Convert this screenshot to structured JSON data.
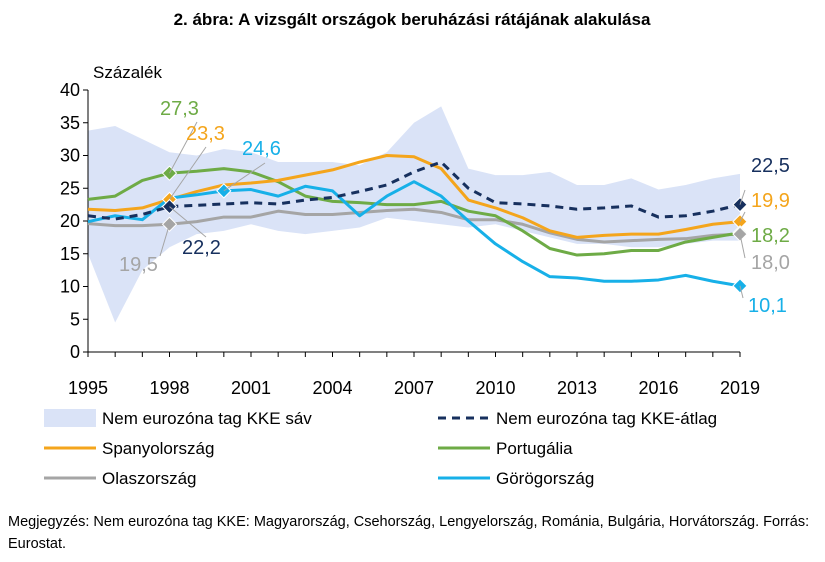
{
  "chart_data": {
    "type": "line",
    "title": "2. ábra: A vizsgált országok beruházási rátájának alakulása",
    "ylabel": "Százalék",
    "xlabel": "",
    "ylim": [
      0,
      40
    ],
    "yticks": [
      0,
      5,
      10,
      15,
      20,
      25,
      30,
      35,
      40
    ],
    "xlim": [
      1995,
      2019
    ],
    "xticks": [
      1995,
      1998,
      2001,
      2004,
      2007,
      2010,
      2013,
      2016,
      2019
    ],
    "grid": false,
    "legend_position": "bottom",
    "x": [
      1995,
      1996,
      1997,
      1998,
      1999,
      2000,
      2001,
      2002,
      2003,
      2004,
      2005,
      2006,
      2007,
      2008,
      2009,
      2010,
      2011,
      2012,
      2013,
      2014,
      2015,
      2016,
      2017,
      2018,
      2019
    ],
    "band": {
      "name": "Nem eurozóna tag KKE sáv",
      "color": "#dae3f7",
      "upper": [
        33.8,
        34.5,
        32.5,
        30.5,
        30.0,
        31.0,
        30.5,
        29.0,
        29.0,
        29.0,
        28.5,
        30.5,
        35.0,
        37.5,
        28.0,
        27.0,
        27.0,
        27.5,
        25.5,
        25.5,
        26.5,
        24.8,
        25.5,
        26.5,
        27.2
      ],
      "lower": [
        15.0,
        4.5,
        12.5,
        16.0,
        18.0,
        18.5,
        19.5,
        18.5,
        18.0,
        18.5,
        19.0,
        20.5,
        20.0,
        19.5,
        19.0,
        19.5,
        18.5,
        17.5,
        16.5,
        16.5,
        16.0,
        16.0,
        16.5,
        17.0,
        17.0
      ]
    },
    "series": [
      {
        "name": "Nem eurozóna tag KKE-átlag",
        "color": "#17305e",
        "dash": true,
        "values": [
          20.8,
          20.3,
          21.0,
          22.2,
          22.4,
          22.6,
          22.8,
          22.6,
          23.2,
          23.6,
          24.5,
          25.5,
          27.5,
          29.0,
          25.0,
          22.8,
          22.6,
          22.3,
          21.8,
          22.0,
          22.3,
          20.6,
          20.8,
          21.5,
          22.5
        ]
      },
      {
        "name": "Spanyolország",
        "color": "#f4a51c",
        "values": [
          21.8,
          21.6,
          22.0,
          23.3,
          24.5,
          25.5,
          25.8,
          26.2,
          27.0,
          27.8,
          29.0,
          30.0,
          29.8,
          28.0,
          23.2,
          22.0,
          20.5,
          18.5,
          17.5,
          17.8,
          18.0,
          18.0,
          18.7,
          19.5,
          19.9
        ]
      },
      {
        "name": "Portugália",
        "color": "#6eab46",
        "values": [
          23.3,
          23.8,
          26.2,
          27.3,
          27.6,
          28.0,
          27.5,
          26.0,
          23.8,
          23.0,
          22.8,
          22.5,
          22.5,
          23.0,
          21.5,
          20.8,
          18.5,
          15.8,
          14.8,
          15.0,
          15.5,
          15.5,
          16.8,
          17.5,
          18.2
        ]
      },
      {
        "name": "Olaszország",
        "color": "#a5a5a5",
        "values": [
          19.6,
          19.3,
          19.3,
          19.5,
          19.9,
          20.6,
          20.6,
          21.5,
          21.0,
          21.0,
          21.3,
          21.6,
          21.8,
          21.3,
          20.2,
          20.2,
          19.5,
          18.2,
          17.2,
          16.8,
          17.0,
          17.2,
          17.3,
          17.8,
          18.0
        ]
      },
      {
        "name": "Görögország",
        "color": "#17b0e8",
        "values": [
          19.9,
          20.8,
          20.2,
          23.5,
          24.0,
          24.6,
          24.8,
          23.8,
          25.3,
          24.6,
          20.8,
          23.8,
          26.0,
          23.8,
          20.0,
          16.5,
          13.8,
          11.5,
          11.3,
          10.8,
          10.8,
          11.0,
          11.7,
          10.8,
          10.1
        ]
      }
    ],
    "annotations": [
      {
        "text": "27,3",
        "color": "#6eab46",
        "x": 1998,
        "y": 27.3
      },
      {
        "text": "23,3",
        "color": "#f4a51c",
        "x": 1998,
        "y": 23.3
      },
      {
        "text": "24,6",
        "color": "#17b0e8",
        "x": 2000,
        "y": 24.6
      },
      {
        "text": "19,5",
        "color": "#a5a5a5",
        "x": 1998,
        "y": 19.5
      },
      {
        "text": "22,2",
        "color": "#17305e",
        "x": 1998,
        "y": 22.2
      },
      {
        "text": "22,5",
        "color": "#17305e",
        "x": 2019,
        "y": 22.5
      },
      {
        "text": "19,9",
        "color": "#f4a51c",
        "x": 2019,
        "y": 19.9
      },
      {
        "text": "18,2",
        "color": "#6eab46",
        "x": 2019,
        "y": 18.2
      },
      {
        "text": "18,0",
        "color": "#a5a5a5",
        "x": 2019,
        "y": 18.0
      },
      {
        "text": "10,1",
        "color": "#17b0e8",
        "x": 2019,
        "y": 10.1
      }
    ]
  },
  "note": "Megjegyzés: Nem eurozóna tag KKE: Magyarország, Csehország, Lengyelország, Románia, Bulgária, Horvátország. Forrás: Eurostat."
}
